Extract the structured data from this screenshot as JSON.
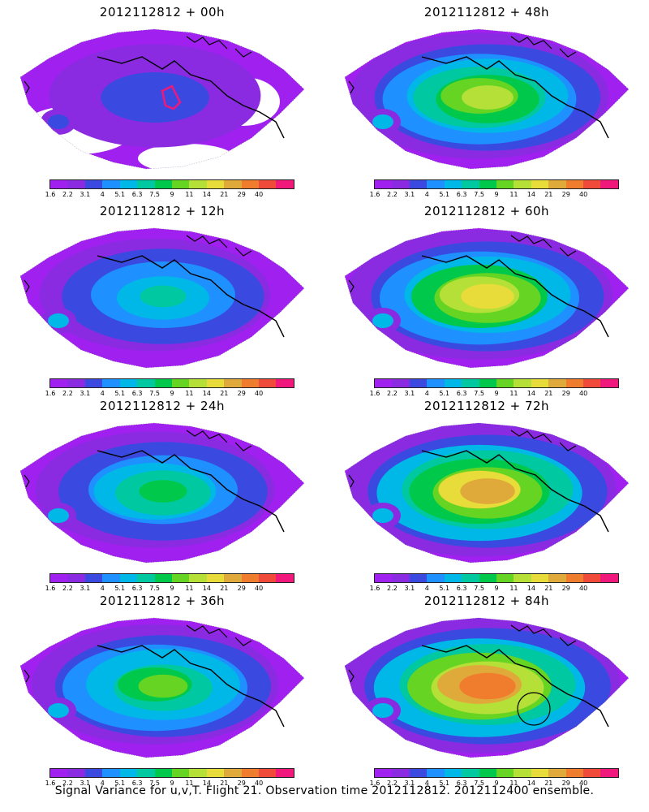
{
  "caption": "Signal Variance for u,v,T. Flight 21. Observation time 2012112812. 2012112400 ensemble.",
  "colorbar": {
    "labels": [
      "1.6",
      "2.2",
      "3.1",
      "4",
      "5.1",
      "6.3",
      "7.5",
      "9",
      "11",
      "14",
      "21",
      "29",
      "40"
    ],
    "colors": [
      "#a020f0",
      "#8a2be2",
      "#3a4ae0",
      "#1e90ff",
      "#00b8e8",
      "#00c8a0",
      "#00c84a",
      "#66d422",
      "#b4e038",
      "#e8dc3a",
      "#e0aa3a",
      "#f07c2e",
      "#f04a3a",
      "#f0187a"
    ]
  },
  "panels": [
    {
      "title": "2012112812 + 00h",
      "level": 0.05,
      "hotspot": true,
      "circle": false
    },
    {
      "title": "2012112812 + 12h",
      "level": 0.3,
      "hotspot": false,
      "circle": false
    },
    {
      "title": "2012112812 + 24h",
      "level": 0.4,
      "hotspot": false,
      "circle": false
    },
    {
      "title": "2012112812 + 36h",
      "level": 0.5,
      "hotspot": false,
      "circle": false
    },
    {
      "title": "2012112812 + 48h",
      "level": 0.65,
      "hotspot": false,
      "circle": false
    },
    {
      "title": "2012112812 + 60h",
      "level": 0.75,
      "hotspot": false,
      "circle": false
    },
    {
      "title": "2012112812 + 72h",
      "level": 0.85,
      "hotspot": false,
      "circle": false
    },
    {
      "title": "2012112812 + 84h",
      "level": 0.95,
      "hotspot": false,
      "circle": true
    }
  ]
}
